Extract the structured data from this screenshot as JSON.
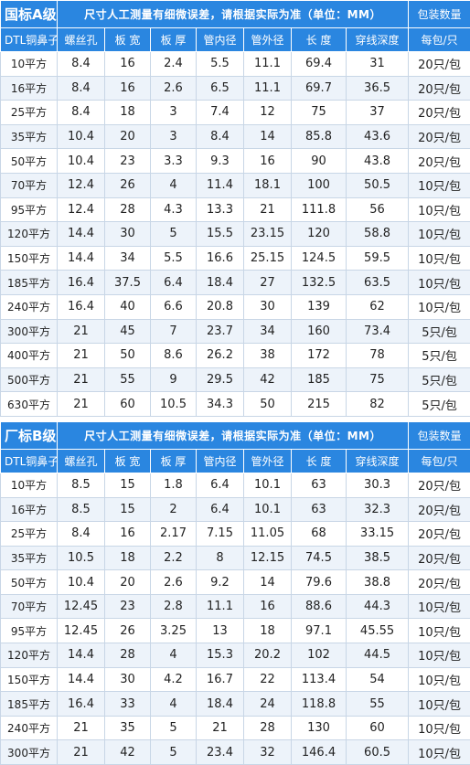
{
  "sections": [
    {
      "brand": "国标A级",
      "note": "尺寸人工测量有细微误差，请根据实际为准（单位：MM）",
      "pack_header": "包装数量",
      "columns": [
        "DTL铜鼻子",
        "螺丝孔",
        "板 宽",
        "板 厚",
        "管内径",
        "管外径",
        "长 度",
        "穿线深度",
        "每包/只"
      ],
      "rows": [
        [
          "10平方",
          "8.4",
          "16",
          "2.4",
          "5.5",
          "11.1",
          "69.4",
          "31",
          "20只/包"
        ],
        [
          "16平方",
          "8.4",
          "16",
          "2.6",
          "6.5",
          "11.1",
          "69.7",
          "36.5",
          "20只/包"
        ],
        [
          "25平方",
          "8.4",
          "18",
          "3",
          "7.4",
          "12",
          "75",
          "37",
          "20只/包"
        ],
        [
          "35平方",
          "10.4",
          "20",
          "3",
          "8.4",
          "14",
          "85.8",
          "43.6",
          "20只/包"
        ],
        [
          "50平方",
          "10.4",
          "23",
          "3.3",
          "9.3",
          "16",
          "90",
          "43.8",
          "20只/包"
        ],
        [
          "70平方",
          "12.4",
          "26",
          "4",
          "11.4",
          "18.1",
          "100",
          "50.5",
          "10只/包"
        ],
        [
          "95平方",
          "12.4",
          "28",
          "4.3",
          "13.3",
          "21",
          "111.8",
          "56",
          "10只/包"
        ],
        [
          "120平方",
          "14.4",
          "30",
          "5",
          "15.5",
          "23.15",
          "120",
          "58.8",
          "10只/包"
        ],
        [
          "150平方",
          "14.4",
          "34",
          "5.5",
          "16.6",
          "25.15",
          "124.5",
          "59.5",
          "10只/包"
        ],
        [
          "185平方",
          "16.4",
          "37.5",
          "6.4",
          "18.4",
          "27",
          "132.5",
          "63.5",
          "10只/包"
        ],
        [
          "240平方",
          "16.4",
          "40",
          "6.6",
          "20.8",
          "30",
          "139",
          "62",
          "10只/包"
        ],
        [
          "300平方",
          "21",
          "45",
          "7",
          "23.7",
          "34",
          "160",
          "73.4",
          "5只/包"
        ],
        [
          "400平方",
          "21",
          "50",
          "8.6",
          "26.2",
          "38",
          "172",
          "78",
          "5只/包"
        ],
        [
          "500平方",
          "21",
          "55",
          "9",
          "29.5",
          "42",
          "185",
          "75",
          "5只/包"
        ],
        [
          "630平方",
          "21",
          "60",
          "10.5",
          "34.3",
          "50",
          "215",
          "82",
          "5只/包"
        ]
      ]
    },
    {
      "brand": "厂标B级",
      "note": "尺寸人工测量有细微误差，请根据实际为准（单位：MM）",
      "pack_header": "包装数量",
      "columns": [
        "DTL铜鼻子",
        "螺丝孔",
        "板 宽",
        "板 厚",
        "管内径",
        "管外径",
        "长 度",
        "穿线深度",
        "每包/只"
      ],
      "rows": [
        [
          "10平方",
          "8.5",
          "15",
          "1.8",
          "6.4",
          "10.1",
          "63",
          "30.3",
          "20只/包"
        ],
        [
          "16平方",
          "8.5",
          "15",
          "2",
          "6.4",
          "10.1",
          "63",
          "32.3",
          "20只/包"
        ],
        [
          "25平方",
          "8.4",
          "16",
          "2.17",
          "7.15",
          "11.05",
          "68",
          "33.15",
          "20只/包"
        ],
        [
          "35平方",
          "10.5",
          "18",
          "2.2",
          "8",
          "12.15",
          "74.5",
          "38.5",
          "20只/包"
        ],
        [
          "50平方",
          "10.4",
          "20",
          "2.6",
          "9.2",
          "14",
          "79.6",
          "38.8",
          "20只/包"
        ],
        [
          "70平方",
          "12.45",
          "23",
          "2.8",
          "11.1",
          "16",
          "88.6",
          "44.3",
          "10只/包"
        ],
        [
          "95平方",
          "12.45",
          "26",
          "3.25",
          "13",
          "18",
          "97.1",
          "45.55",
          "10只/包"
        ],
        [
          "120平方",
          "14.4",
          "28",
          "4",
          "15.3",
          "20.2",
          "102",
          "44.5",
          "10只/包"
        ],
        [
          "150平方",
          "14.4",
          "30",
          "4.2",
          "16.7",
          "22",
          "113.4",
          "54",
          "10只/包"
        ],
        [
          "185平方",
          "16.4",
          "33",
          "4",
          "18.4",
          "24",
          "118.8",
          "55",
          "10只/包"
        ],
        [
          "240平方",
          "21",
          "35",
          "5",
          "21",
          "28",
          "130",
          "60",
          "10只/包"
        ],
        [
          "300平方",
          "21",
          "42",
          "5",
          "23.4",
          "32",
          "146.4",
          "60.5",
          "10只/包"
        ]
      ]
    }
  ]
}
